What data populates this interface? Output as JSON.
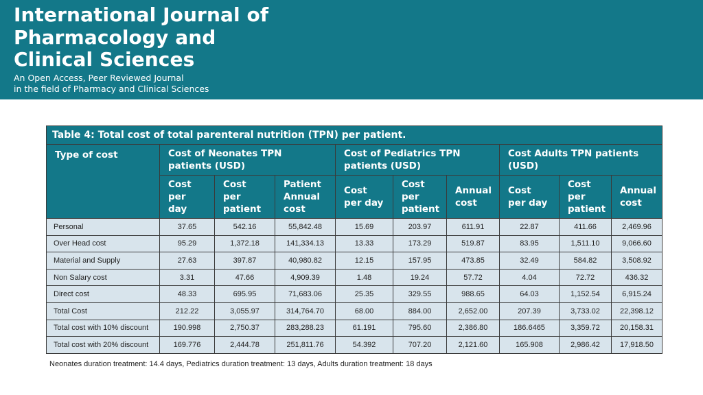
{
  "banner": {
    "title_lines": [
      "International Journal of",
      "Pharmacology and",
      "Clinical Sciences"
    ],
    "subtitle_lines": [
      "An Open Access, Peer Reviewed Journal",
      "in the field of Pharmacy and Clinical Sciences"
    ],
    "background_color": "#137889"
  },
  "table": {
    "caption": "Table 4: Total cost of total parenteral nutrition (TPN) per patient.",
    "type_header": "Type of cost",
    "groups": [
      {
        "label": "Cost of Neonates TPN patients (USD)",
        "columns": [
          "Cost per day",
          "Cost per patient",
          "Patient Annual cost"
        ]
      },
      {
        "label": "Cost of Pediatrics TPN patients (USD)",
        "columns": [
          "Cost per day",
          "Cost per patient",
          "Annual cost"
        ]
      },
      {
        "label": "Cost Adults TPN patients (USD)",
        "columns": [
          "Cost per day",
          "Cost per patient",
          "Annual cost"
        ]
      }
    ],
    "rows": [
      {
        "label": "Personal",
        "values": [
          "37.65",
          "542.16",
          "55,842.48",
          "15.69",
          "203.97",
          "611.91",
          "22.87",
          "411.66",
          "2,469.96"
        ]
      },
      {
        "label": "Over Head cost",
        "values": [
          "95.29",
          "1,372.18",
          "141,334.13",
          "13.33",
          "173.29",
          "519.87",
          "83.95",
          "1,511.10",
          "9,066.60"
        ]
      },
      {
        "label": "Material and Supply",
        "values": [
          "27.63",
          "397.87",
          "40,980.82",
          "12.15",
          "157.95",
          "473.85",
          "32.49",
          "584.82",
          "3,508.92"
        ]
      },
      {
        "label": "Non Salary cost",
        "values": [
          "3.31",
          "47.66",
          "4,909.39",
          "1.48",
          "19.24",
          "57.72",
          "4.04",
          "72.72",
          "436.32"
        ]
      },
      {
        "label": "Direct cost",
        "values": [
          "48.33",
          "695.95",
          "71,683.06",
          "25.35",
          "329.55",
          "988.65",
          "64.03",
          "1,152.54",
          "6,915.24"
        ]
      },
      {
        "label": "Total Cost",
        "values": [
          "212.22",
          "3,055.97",
          "314,764.70",
          "68.00",
          "884.00",
          "2,652.00",
          "207.39",
          "3,733.02",
          "22,398.12"
        ]
      },
      {
        "label": "Total cost with 10% discount",
        "values": [
          "190.998",
          "2,750.37",
          "283,288.23",
          "61.191",
          "795.60",
          "2,386.80",
          "186.6465",
          "3,359.72",
          "20,158.31"
        ]
      },
      {
        "label": "Total cost with 20% discount",
        "values": [
          "169.776",
          "2,444.78",
          "251,811.76",
          "54.392",
          "707.20",
          "2,121.60",
          "165.908",
          "2,986.42",
          "17,918.50"
        ]
      }
    ]
  },
  "footnote": "Neonates duration treatment: 14.4 days, Pediatrics duration treatment: 13 days, Adults duration treatment: 18 days"
}
